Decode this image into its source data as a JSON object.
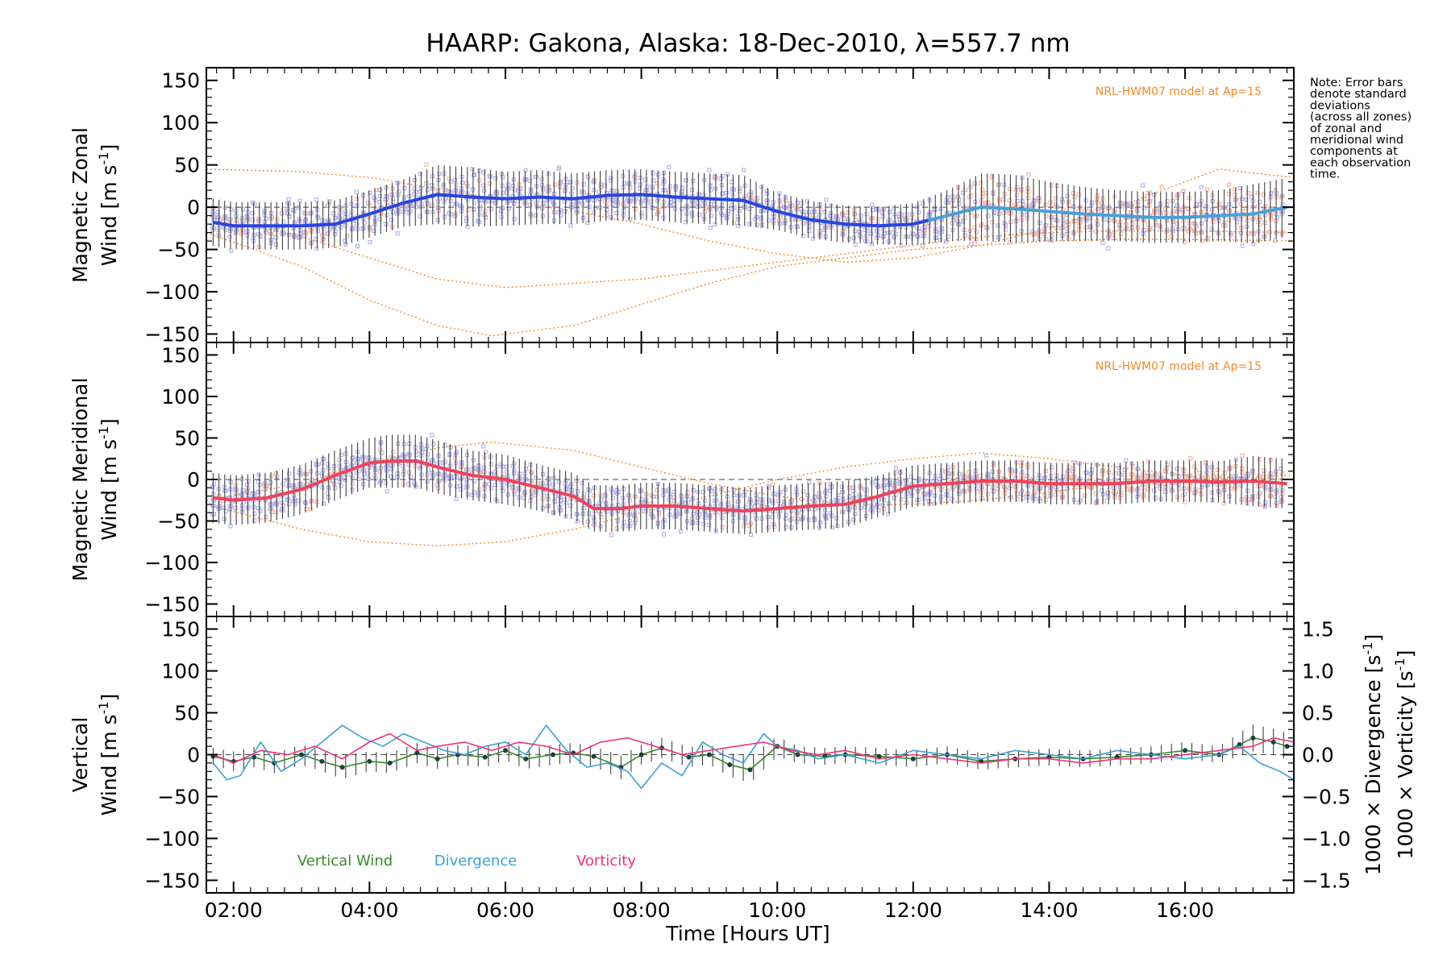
{
  "title": "HAARP: Gakona,  Alaska: 18-Dec-2010, λ=557.7 nm",
  "note": [
    "Note: Error bars",
    "denote standard",
    "deviations",
    "(across all zones)",
    "of zonal and",
    "meridional wind",
    "components at",
    "each observation",
    "time."
  ],
  "xaxis": {
    "label": "Time [Hours UT]",
    "range": [
      1.6,
      17.6
    ],
    "ticks": [
      2,
      4,
      6,
      8,
      10,
      12,
      14,
      16
    ],
    "tick_labels": [
      "02:00",
      "04:00",
      "06:00",
      "08:00",
      "10:00",
      "12:00",
      "14:00",
      "16:00"
    ]
  },
  "colors": {
    "zonal": "#2646e0",
    "zonal_late": "#4aa0d8",
    "meridional": "#f0425a",
    "model": "#f08a2c",
    "vertical": "#3a8a2a",
    "divergence": "#3d9fd3",
    "vorticity": "#ee3377",
    "zone_points": "#b3b0e6",
    "zone_points_warm": "#f4b4a4",
    "errorbar": "#404040"
  },
  "chart_data": [
    {
      "type": "line",
      "ylabel": [
        "Magnetic Zonal",
        "Wind [m s",
        "-1",
        "]"
      ],
      "ylim": [
        -160,
        165
      ],
      "yticks": [
        -150,
        -100,
        -50,
        0,
        50,
        100,
        150
      ],
      "ytick_labels": [
        "−150",
        "−100",
        "−50",
        "0",
        "50",
        "100",
        "150"
      ],
      "model_label": "NRL-HWM07 model at Ap=15",
      "series": [
        {
          "key": "zonal",
          "x": [
            1.7,
            2.0,
            2.5,
            3.0,
            3.5,
            4.0,
            4.5,
            5.0,
            5.5,
            6.0,
            6.5,
            7.0,
            7.5,
            8.0,
            8.5,
            9.0,
            9.5,
            10.0,
            10.5,
            11.0,
            11.5,
            12.0,
            12.5,
            13.0,
            13.5,
            14.0,
            14.5,
            15.0,
            15.5,
            16.0,
            16.5,
            17.0,
            17.5
          ],
          "y": [
            -18,
            -22,
            -22,
            -22,
            -20,
            -8,
            5,
            15,
            12,
            10,
            12,
            10,
            14,
            15,
            12,
            10,
            8,
            -5,
            -15,
            -20,
            -22,
            -20,
            -10,
            0,
            -2,
            -5,
            -8,
            -10,
            -12,
            -12,
            -10,
            -8,
            0
          ],
          "err": [
            28,
            28,
            28,
            28,
            28,
            28,
            28,
            35,
            35,
            32,
            32,
            30,
            30,
            30,
            30,
            30,
            30,
            22,
            22,
            22,
            22,
            25,
            30,
            40,
            40,
            35,
            32,
            30,
            30,
            30,
            30,
            35,
            35
          ]
        }
      ],
      "model_curves": [
        {
          "x": [
            1.6,
            3.0,
            4.0,
            5.0,
            6.0,
            7.0,
            8.0,
            9.0,
            10.0,
            11.0,
            12.0,
            13.0,
            14.0,
            15.0,
            16.0,
            16.5,
            17.6
          ],
          "y": [
            45,
            42,
            35,
            22,
            8,
            -5,
            -20,
            -40,
            -55,
            -65,
            -60,
            -45,
            -25,
            0,
            30,
            45,
            35
          ]
        },
        {
          "x": [
            1.6,
            3.0,
            4.0,
            5.0,
            6.0,
            7.0,
            8.0,
            9.0,
            10.0,
            11.0,
            12.0,
            13.0,
            14.0,
            15.0,
            16.0,
            17.6
          ],
          "y": [
            -10,
            -35,
            -60,
            -85,
            -95,
            -90,
            -85,
            -75,
            -65,
            -55,
            -45,
            -35,
            -30,
            -28,
            -28,
            -30
          ]
        },
        {
          "x": [
            1.6,
            3.0,
            4.0,
            5.0,
            5.8,
            7.0,
            8.0,
            9.0,
            10.0,
            11.0,
            12.0,
            13.0,
            14.0,
            15.0,
            16.0,
            17.6
          ],
          "y": [
            -30,
            -70,
            -110,
            -140,
            -152,
            -140,
            -115,
            -90,
            -70,
            -60,
            -50,
            -45,
            -40,
            -38,
            -38,
            -40
          ]
        }
      ]
    },
    {
      "type": "line",
      "ylabel": [
        "Magnetic Meridional",
        "Wind [m s",
        "-1",
        "]"
      ],
      "ylim": [
        -165,
        165
      ],
      "yticks": [
        -150,
        -100,
        -50,
        0,
        50,
        100,
        150
      ],
      "ytick_labels": [
        "−150",
        "−100",
        "−50",
        "0",
        "50",
        "100",
        "150"
      ],
      "model_label": "NRL-HWM07 model at Ap=15",
      "series": [
        {
          "key": "meridional",
          "x": [
            1.7,
            2.0,
            2.5,
            3.0,
            3.5,
            4.0,
            4.3,
            4.7,
            5.0,
            5.5,
            6.0,
            6.5,
            7.0,
            7.3,
            7.7,
            8.0,
            8.5,
            9.0,
            9.5,
            10.0,
            10.5,
            11.0,
            11.5,
            12.0,
            12.5,
            13.0,
            13.5,
            14.0,
            14.5,
            15.0,
            15.5,
            16.0,
            16.5,
            17.0,
            17.5
          ],
          "y": [
            -22,
            -25,
            -22,
            -12,
            5,
            20,
            22,
            22,
            15,
            5,
            0,
            -10,
            -20,
            -35,
            -35,
            -32,
            -32,
            -35,
            -38,
            -35,
            -32,
            -30,
            -20,
            -8,
            -5,
            -2,
            -2,
            -5,
            -5,
            -5,
            -2,
            -2,
            -3,
            -2,
            -5
          ],
          "err": [
            30,
            30,
            30,
            30,
            30,
            30,
            32,
            32,
            32,
            30,
            30,
            28,
            28,
            28,
            28,
            28,
            28,
            28,
            28,
            28,
            28,
            28,
            25,
            25,
            25,
            25,
            25,
            25,
            25,
            25,
            25,
            25,
            25,
            30,
            30
          ]
        }
      ],
      "model_curves": [
        {
          "x": [
            1.6,
            3.0,
            4.0,
            5.0,
            5.8,
            7.0,
            8.0,
            9.0,
            10.0,
            11.0,
            12.0,
            13.0,
            14.0,
            15.0,
            16.0,
            17.6
          ],
          "y": [
            -25,
            -5,
            20,
            38,
            45,
            35,
            15,
            -5,
            -20,
            -30,
            -30,
            -25,
            -15,
            -5,
            0,
            5
          ]
        },
        {
          "x": [
            1.6,
            3.0,
            4.0,
            5.0,
            6.0,
            7.0,
            8.0,
            9.0,
            10.0,
            11.0,
            12.0,
            13.0,
            14.0,
            15.0,
            16.0,
            17.6
          ],
          "y": [
            -30,
            -60,
            -75,
            -80,
            -75,
            -60,
            -40,
            -20,
            0,
            15,
            25,
            32,
            25,
            15,
            5,
            0
          ]
        }
      ]
    },
    {
      "type": "line",
      "ylabel": [
        "Vertical",
        "Wind [m s",
        "-1",
        "]"
      ],
      "ylim": [
        -165,
        165
      ],
      "yticks": [
        -150,
        -100,
        -50,
        0,
        50,
        100,
        150
      ],
      "ytick_labels": [
        "−150",
        "−100",
        "−50",
        "0",
        "50",
        "100",
        "150"
      ],
      "y2lim": [
        -1.65,
        1.65
      ],
      "y2ticks": [
        -1.5,
        -1.0,
        -0.5,
        0.0,
        0.5,
        1.0,
        1.5
      ],
      "y2tick_labels": [
        "−1.5",
        "−1.0",
        "−0.5",
        "0.0",
        "0.5",
        "1.0",
        "1.5"
      ],
      "y2label_divergence": [
        "1000 × Divergence [s",
        "-1",
        "]"
      ],
      "y2label_vorticity": [
        "1000 × Vorticity [s",
        "-1",
        "]"
      ],
      "legend": [
        "Vertical Wind",
        "Divergence",
        "Vorticity"
      ],
      "series": [
        {
          "key": "vertical",
          "name": "Vertical Wind",
          "x": [
            1.7,
            2.0,
            2.3,
            2.6,
            3.0,
            3.3,
            3.6,
            4.0,
            4.3,
            4.7,
            5.0,
            5.3,
            5.7,
            6.0,
            6.3,
            6.7,
            7.0,
            7.3,
            7.7,
            8.0,
            8.3,
            8.7,
            9.0,
            9.3,
            9.6,
            10.0,
            10.3,
            10.7,
            11.0,
            11.5,
            12.0,
            12.5,
            13.0,
            13.5,
            14.0,
            14.5,
            15.0,
            15.5,
            16.0,
            16.5,
            16.8,
            17.0,
            17.3,
            17.5
          ],
          "y": [
            -2,
            -8,
            -3,
            -10,
            0,
            -8,
            -15,
            -8,
            -10,
            2,
            -5,
            0,
            -3,
            5,
            -5,
            0,
            2,
            -2,
            -15,
            0,
            8,
            -3,
            0,
            -12,
            -18,
            10,
            0,
            -2,
            0,
            -2,
            -5,
            0,
            -8,
            -5,
            -3,
            -5,
            -3,
            0,
            5,
            0,
            12,
            20,
            15,
            10
          ],
          "err": [
            10,
            12,
            12,
            12,
            12,
            12,
            14,
            12,
            12,
            12,
            12,
            12,
            12,
            12,
            12,
            12,
            12,
            12,
            14,
            12,
            12,
            12,
            12,
            14,
            16,
            12,
            10,
            10,
            10,
            10,
            10,
            10,
            10,
            10,
            10,
            10,
            10,
            10,
            10,
            10,
            14,
            16,
            16,
            16
          ]
        },
        {
          "key": "divergence",
          "name": "Divergence",
          "axis": "y2",
          "x": [
            1.7,
            1.9,
            2.1,
            2.4,
            2.7,
            3.0,
            3.3,
            3.6,
            3.9,
            4.2,
            4.5,
            4.8,
            5.1,
            5.4,
            5.7,
            6.0,
            6.3,
            6.6,
            6.9,
            7.2,
            7.5,
            7.8,
            8.0,
            8.3,
            8.6,
            8.9,
            9.2,
            9.5,
            9.8,
            10.0,
            10.3,
            10.6,
            11.0,
            11.5,
            12.0,
            12.5,
            13.0,
            13.5,
            14.0,
            14.5,
            15.0,
            15.5,
            16.0,
            16.5,
            16.8,
            17.1,
            17.4,
            17.6
          ],
          "y": [
            -0.1,
            -0.3,
            -0.25,
            0.15,
            -0.2,
            -0.05,
            0.15,
            0.35,
            0.2,
            0.1,
            0.25,
            0.15,
            0.05,
            0.0,
            0.1,
            0.15,
            0.0,
            0.35,
            0.05,
            -0.15,
            -0.1,
            -0.2,
            -0.4,
            -0.1,
            -0.25,
            0.15,
            0.0,
            -0.1,
            0.25,
            0.1,
            0.05,
            -0.05,
            0.0,
            -0.1,
            0.05,
            0.0,
            -0.05,
            0.05,
            0.0,
            -0.05,
            0.05,
            0.0,
            -0.05,
            0.0,
            0.1,
            -0.1,
            -0.2,
            -0.3
          ]
        },
        {
          "key": "vorticity",
          "name": "Vorticity",
          "axis": "y2",
          "x": [
            1.7,
            2.0,
            2.4,
            2.8,
            3.2,
            3.6,
            4.0,
            4.3,
            4.7,
            5.0,
            5.4,
            5.8,
            6.2,
            6.6,
            7.0,
            7.4,
            7.8,
            8.2,
            8.6,
            9.0,
            9.4,
            9.8,
            10.2,
            10.6,
            11.0,
            11.5,
            12.0,
            12.5,
            13.0,
            13.5,
            14.0,
            14.5,
            15.0,
            15.5,
            16.0,
            16.5,
            17.0,
            17.3,
            17.6
          ],
          "y": [
            0.0,
            -0.1,
            0.05,
            0.0,
            0.1,
            -0.05,
            0.15,
            0.25,
            0.05,
            0.1,
            0.15,
            0.05,
            0.15,
            0.1,
            0.0,
            0.15,
            0.2,
            0.1,
            0.0,
            0.05,
            0.1,
            0.15,
            0.05,
            0.0,
            0.05,
            -0.05,
            0.0,
            -0.05,
            -0.1,
            -0.05,
            -0.05,
            -0.1,
            -0.05,
            -0.05,
            0.0,
            0.05,
            0.1,
            0.2,
            0.15
          ]
        }
      ]
    }
  ]
}
